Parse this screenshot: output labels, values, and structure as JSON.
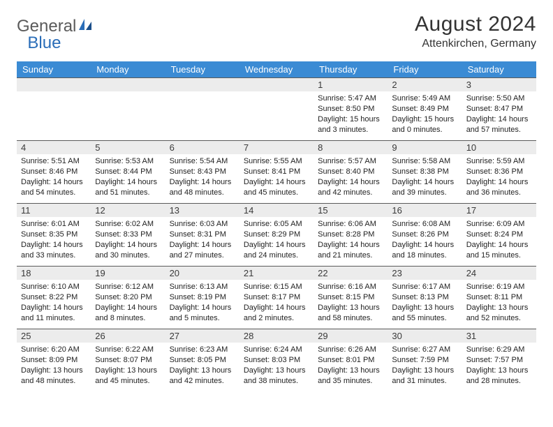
{
  "brand": {
    "part1": "General",
    "part2": "Blue"
  },
  "title": "August 2024",
  "location": "Attenkirchen, Germany",
  "colors": {
    "header_bg": "#3b8bd4",
    "header_text": "#ffffff",
    "daynum_bg": "#ececec",
    "border": "#5a5a5a",
    "brand_gray": "#5a5a5a",
    "brand_blue": "#2a6db8"
  },
  "weekdays": [
    "Sunday",
    "Monday",
    "Tuesday",
    "Wednesday",
    "Thursday",
    "Friday",
    "Saturday"
  ],
  "weeks": [
    [
      null,
      null,
      null,
      null,
      {
        "n": "1",
        "sr": "Sunrise: 5:47 AM",
        "ss": "Sunset: 8:50 PM",
        "d1": "Daylight: 15 hours",
        "d2": "and 3 minutes."
      },
      {
        "n": "2",
        "sr": "Sunrise: 5:49 AM",
        "ss": "Sunset: 8:49 PM",
        "d1": "Daylight: 15 hours",
        "d2": "and 0 minutes."
      },
      {
        "n": "3",
        "sr": "Sunrise: 5:50 AM",
        "ss": "Sunset: 8:47 PM",
        "d1": "Daylight: 14 hours",
        "d2": "and 57 minutes."
      }
    ],
    [
      {
        "n": "4",
        "sr": "Sunrise: 5:51 AM",
        "ss": "Sunset: 8:46 PM",
        "d1": "Daylight: 14 hours",
        "d2": "and 54 minutes."
      },
      {
        "n": "5",
        "sr": "Sunrise: 5:53 AM",
        "ss": "Sunset: 8:44 PM",
        "d1": "Daylight: 14 hours",
        "d2": "and 51 minutes."
      },
      {
        "n": "6",
        "sr": "Sunrise: 5:54 AM",
        "ss": "Sunset: 8:43 PM",
        "d1": "Daylight: 14 hours",
        "d2": "and 48 minutes."
      },
      {
        "n": "7",
        "sr": "Sunrise: 5:55 AM",
        "ss": "Sunset: 8:41 PM",
        "d1": "Daylight: 14 hours",
        "d2": "and 45 minutes."
      },
      {
        "n": "8",
        "sr": "Sunrise: 5:57 AM",
        "ss": "Sunset: 8:40 PM",
        "d1": "Daylight: 14 hours",
        "d2": "and 42 minutes."
      },
      {
        "n": "9",
        "sr": "Sunrise: 5:58 AM",
        "ss": "Sunset: 8:38 PM",
        "d1": "Daylight: 14 hours",
        "d2": "and 39 minutes."
      },
      {
        "n": "10",
        "sr": "Sunrise: 5:59 AM",
        "ss": "Sunset: 8:36 PM",
        "d1": "Daylight: 14 hours",
        "d2": "and 36 minutes."
      }
    ],
    [
      {
        "n": "11",
        "sr": "Sunrise: 6:01 AM",
        "ss": "Sunset: 8:35 PM",
        "d1": "Daylight: 14 hours",
        "d2": "and 33 minutes."
      },
      {
        "n": "12",
        "sr": "Sunrise: 6:02 AM",
        "ss": "Sunset: 8:33 PM",
        "d1": "Daylight: 14 hours",
        "d2": "and 30 minutes."
      },
      {
        "n": "13",
        "sr": "Sunrise: 6:03 AM",
        "ss": "Sunset: 8:31 PM",
        "d1": "Daylight: 14 hours",
        "d2": "and 27 minutes."
      },
      {
        "n": "14",
        "sr": "Sunrise: 6:05 AM",
        "ss": "Sunset: 8:29 PM",
        "d1": "Daylight: 14 hours",
        "d2": "and 24 minutes."
      },
      {
        "n": "15",
        "sr": "Sunrise: 6:06 AM",
        "ss": "Sunset: 8:28 PM",
        "d1": "Daylight: 14 hours",
        "d2": "and 21 minutes."
      },
      {
        "n": "16",
        "sr": "Sunrise: 6:08 AM",
        "ss": "Sunset: 8:26 PM",
        "d1": "Daylight: 14 hours",
        "d2": "and 18 minutes."
      },
      {
        "n": "17",
        "sr": "Sunrise: 6:09 AM",
        "ss": "Sunset: 8:24 PM",
        "d1": "Daylight: 14 hours",
        "d2": "and 15 minutes."
      }
    ],
    [
      {
        "n": "18",
        "sr": "Sunrise: 6:10 AM",
        "ss": "Sunset: 8:22 PM",
        "d1": "Daylight: 14 hours",
        "d2": "and 11 minutes."
      },
      {
        "n": "19",
        "sr": "Sunrise: 6:12 AM",
        "ss": "Sunset: 8:20 PM",
        "d1": "Daylight: 14 hours",
        "d2": "and 8 minutes."
      },
      {
        "n": "20",
        "sr": "Sunrise: 6:13 AM",
        "ss": "Sunset: 8:19 PM",
        "d1": "Daylight: 14 hours",
        "d2": "and 5 minutes."
      },
      {
        "n": "21",
        "sr": "Sunrise: 6:15 AM",
        "ss": "Sunset: 8:17 PM",
        "d1": "Daylight: 14 hours",
        "d2": "and 2 minutes."
      },
      {
        "n": "22",
        "sr": "Sunrise: 6:16 AM",
        "ss": "Sunset: 8:15 PM",
        "d1": "Daylight: 13 hours",
        "d2": "and 58 minutes."
      },
      {
        "n": "23",
        "sr": "Sunrise: 6:17 AM",
        "ss": "Sunset: 8:13 PM",
        "d1": "Daylight: 13 hours",
        "d2": "and 55 minutes."
      },
      {
        "n": "24",
        "sr": "Sunrise: 6:19 AM",
        "ss": "Sunset: 8:11 PM",
        "d1": "Daylight: 13 hours",
        "d2": "and 52 minutes."
      }
    ],
    [
      {
        "n": "25",
        "sr": "Sunrise: 6:20 AM",
        "ss": "Sunset: 8:09 PM",
        "d1": "Daylight: 13 hours",
        "d2": "and 48 minutes."
      },
      {
        "n": "26",
        "sr": "Sunrise: 6:22 AM",
        "ss": "Sunset: 8:07 PM",
        "d1": "Daylight: 13 hours",
        "d2": "and 45 minutes."
      },
      {
        "n": "27",
        "sr": "Sunrise: 6:23 AM",
        "ss": "Sunset: 8:05 PM",
        "d1": "Daylight: 13 hours",
        "d2": "and 42 minutes."
      },
      {
        "n": "28",
        "sr": "Sunrise: 6:24 AM",
        "ss": "Sunset: 8:03 PM",
        "d1": "Daylight: 13 hours",
        "d2": "and 38 minutes."
      },
      {
        "n": "29",
        "sr": "Sunrise: 6:26 AM",
        "ss": "Sunset: 8:01 PM",
        "d1": "Daylight: 13 hours",
        "d2": "and 35 minutes."
      },
      {
        "n": "30",
        "sr": "Sunrise: 6:27 AM",
        "ss": "Sunset: 7:59 PM",
        "d1": "Daylight: 13 hours",
        "d2": "and 31 minutes."
      },
      {
        "n": "31",
        "sr": "Sunrise: 6:29 AM",
        "ss": "Sunset: 7:57 PM",
        "d1": "Daylight: 13 hours",
        "d2": "and 28 minutes."
      }
    ]
  ]
}
